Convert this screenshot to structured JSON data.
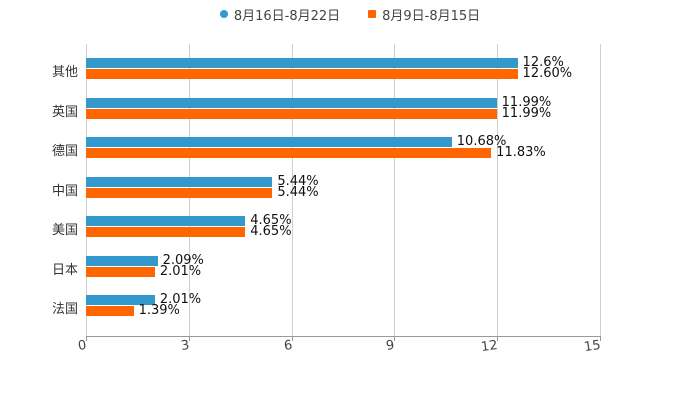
{
  "legend": [
    {
      "label": "8月16日-8月22日",
      "color": "#3399cc",
      "shape": "circle"
    },
    {
      "label": "8月9日-8月15日",
      "color": "#ff6600",
      "shape": "square"
    }
  ],
  "chart_data": {
    "type": "bar",
    "orientation": "horizontal",
    "title": "",
    "xlabel": "",
    "ylabel": "",
    "categories": [
      "其他",
      "英国",
      "德国",
      "中国",
      "美国",
      "日本",
      "法国"
    ],
    "series": [
      {
        "name": "8月16日-8月22日",
        "color": "#3399cc",
        "values": [
          12.6,
          11.99,
          10.68,
          5.44,
          4.65,
          2.09,
          2.01
        ],
        "labels": [
          "12.6%",
          "11.99%",
          "10.68%",
          "5.44%",
          "4.65%",
          "2.09%",
          "2.01%"
        ]
      },
      {
        "name": "8月9日-8月15日",
        "color": "#ff6600",
        "values": [
          12.6,
          11.99,
          11.83,
          5.44,
          4.65,
          2.01,
          1.39
        ],
        "labels": [
          "12.60%",
          "11.99%",
          "11.83%",
          "5.44%",
          "4.65%",
          "2.01%",
          "1.39%"
        ]
      }
    ],
    "xlim": [
      0,
      15
    ],
    "xticks": [
      "0",
      "3",
      "6",
      "9",
      "12",
      "15"
    ],
    "grid": true,
    "legend_position": "top"
  }
}
